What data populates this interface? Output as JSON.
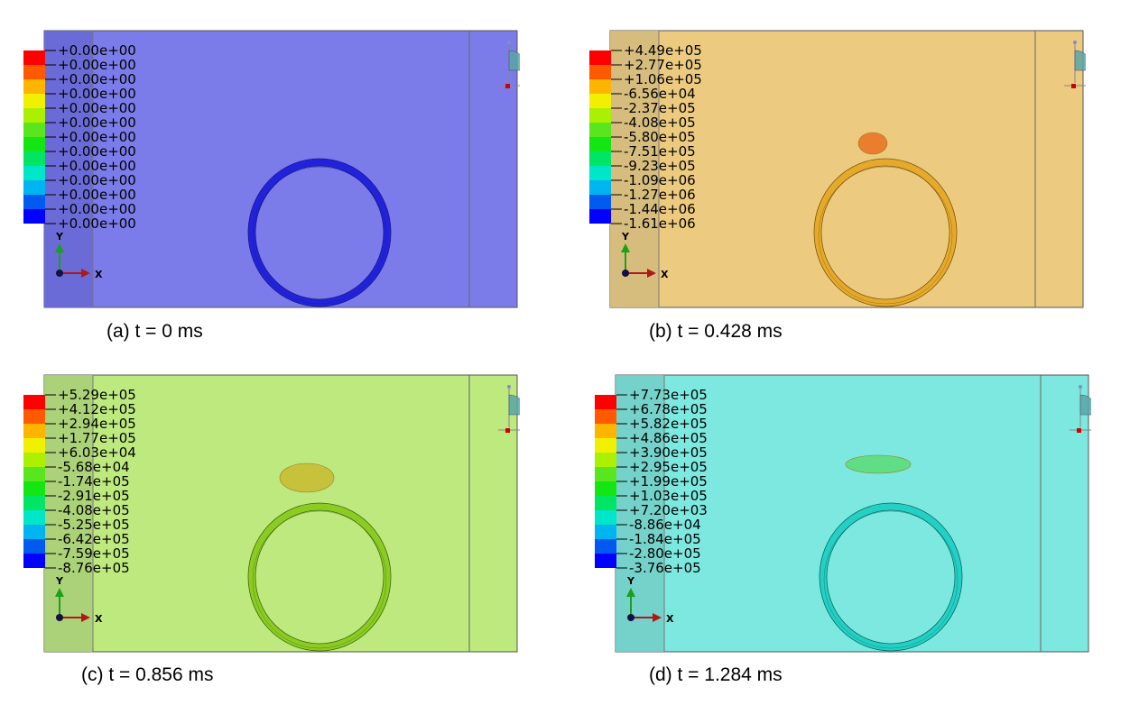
{
  "colorbar_colors": [
    "#ff0000",
    "#ff5a00",
    "#ffb400",
    "#f0f000",
    "#aaf000",
    "#5ae61e",
    "#14e614",
    "#00e664",
    "#00e6c8",
    "#00b4f0",
    "#005af0",
    "#0000ff"
  ],
  "axis_labels": {
    "y": "Y",
    "x": "X"
  },
  "panels": [
    {
      "caption": "(a) t = 0 ms",
      "legend": [
        "+0.00e+00",
        "+0.00e+00",
        "+0.00e+00",
        "+0.00e+00",
        "+0.00e+00",
        "+0.00e+00",
        "+0.00e+00",
        "+0.00e+00",
        "+0.00e+00",
        "+0.00e+00",
        "+0.00e+00",
        "+0.00e+00",
        "+0.00e+00"
      ],
      "field_color": "#7b7ce9",
      "stripe_color": "#6969d6",
      "ring_color": "#2222dd",
      "ring_edge": "#1a1a8a",
      "has_blob": false
    },
    {
      "caption": "(b) t = 0.428 ms",
      "legend": [
        "+4.49e+05",
        "+2.77e+05",
        "+1.06e+05",
        "-6.56e+04",
        "-2.37e+05",
        "-4.08e+05",
        "-5.80e+05",
        "-7.51e+05",
        "-9.23e+05",
        "-1.09e+06",
        "-1.27e+06",
        "-1.44e+06",
        "-1.61e+06"
      ],
      "field_color": "#eccb80",
      "stripe_color": "#d5bb7c",
      "ring_color": "#e6a92a",
      "ring_edge": "#7a5a10",
      "has_blob": true,
      "blob_color": "#e87a2a"
    },
    {
      "caption": "(c) t = 0.856 ms",
      "legend": [
        "+5.29e+05",
        "+4.12e+05",
        "+2.94e+05",
        "+1.77e+05",
        "+6.03e+04",
        "-5.68e+04",
        "-1.74e+05",
        "-2.91e+05",
        "-4.08e+05",
        "-5.25e+05",
        "-6.42e+05",
        "-7.59e+05",
        "-8.76e+05"
      ],
      "field_color": "#bde97e",
      "stripe_color": "#a9cf78",
      "ring_color": "#8ccc22",
      "ring_edge": "#3f6a0c",
      "has_blob": true,
      "blob_color": "#c8c038"
    },
    {
      "caption": "(d) t = 1.284 ms",
      "legend": [
        "+7.73e+05",
        "+6.78e+05",
        "+5.82e+05",
        "+4.86e+05",
        "+3.90e+05",
        "+2.95e+05",
        "+1.99e+05",
        "+1.03e+05",
        "+7.20e+03",
        "-8.86e+04",
        "-1.84e+05",
        "-2.80e+05",
        "-3.76e+05"
      ],
      "field_color": "#7de8df",
      "stripe_color": "#74cfc9",
      "ring_color": "#22d0c4",
      "ring_edge": "#0c6a66",
      "has_blob": true,
      "blob_color": "#5ede82"
    }
  ]
}
